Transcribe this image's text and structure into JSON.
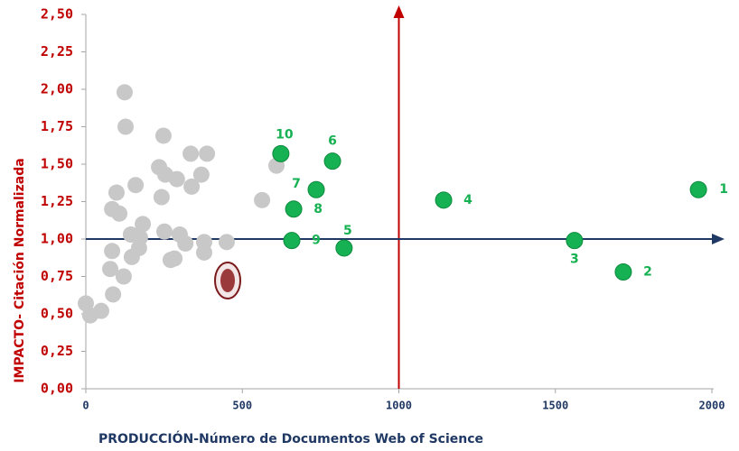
{
  "chart_data": {
    "type": "scatter",
    "x_label": "PRODUCCIÓN-Número de Documentos Web of Science",
    "y_label": "IMPACTO- Citación Normalizada",
    "xlim": [
      0,
      2000
    ],
    "ylim": [
      0,
      2.5
    ],
    "xticks": [
      0,
      500,
      1000,
      1500,
      2000
    ],
    "yticks": [
      {
        "value": 0,
        "label": "0,00"
      },
      {
        "value": 0.25,
        "label": "0,25"
      },
      {
        "value": 0.5,
        "label": "0,50"
      },
      {
        "value": 0.75,
        "label": "0,75"
      },
      {
        "value": 1,
        "label": "1,00"
      },
      {
        "value": 1.25,
        "label": "1,25"
      },
      {
        "value": 1.5,
        "label": "1,50"
      },
      {
        "value": 1.75,
        "label": "1,75"
      },
      {
        "value": 2,
        "label": "2,00"
      },
      {
        "value": 2.25,
        "label": "2,25"
      },
      {
        "value": 2.5,
        "label": "2,50"
      }
    ],
    "grid": false,
    "x_reference": {
      "value": 1000,
      "color": "#c00000"
    },
    "y_reference": {
      "value": 1,
      "color": "#1f3864"
    },
    "series": [
      {
        "color": "#c8c8c8",
        "x": [
          124,
          127,
          248,
          335,
          387,
          234,
          291,
          254,
          369,
          609,
          159,
          338,
          98,
          242,
          563,
          84,
          107,
          182,
          144,
          251,
          300,
          173,
          318,
          378,
          450,
          170,
          84,
          147,
          283,
          271,
          378,
          78,
          121,
          87,
          0,
          14,
          49
        ],
        "y": [
          1.98,
          1.75,
          1.69,
          1.57,
          1.57,
          1.48,
          1.4,
          1.43,
          1.43,
          1.49,
          1.36,
          1.35,
          1.31,
          1.28,
          1.26,
          1.2,
          1.17,
          1.1,
          1.03,
          1.05,
          1.03,
          1.01,
          0.97,
          0.98,
          0.98,
          0.94,
          0.92,
          0.88,
          0.87,
          0.86,
          0.91,
          0.8,
          0.75,
          0.63,
          0.57,
          0.49,
          0.52
        ]
      },
      {
        "color": "#16b152",
        "x": [
          1957,
          1717,
          1561,
          1143,
          825,
          788,
          736,
          664,
          658,
          623
        ],
        "y": [
          1.33,
          0.78,
          0.99,
          1.26,
          0.94,
          1.52,
          1.33,
          1.2,
          0.99,
          1.57
        ],
        "labels": [
          "1",
          "2",
          "3",
          "4",
          "5",
          "6",
          "7",
          "8",
          "9",
          "10"
        ]
      }
    ]
  }
}
